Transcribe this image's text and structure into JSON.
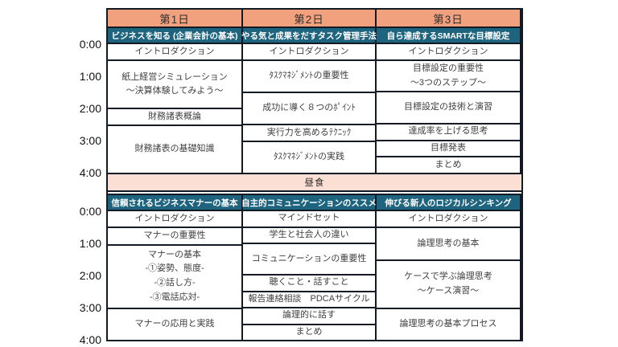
{
  "colors": {
    "day_header_bg": "#F1A17D",
    "course_title_bg": "#1E647E",
    "course_title_text": "#FFFFFF",
    "lunch_bg": "#FBDFD4",
    "border": "#131A23",
    "cell_text": "#3F3F3F",
    "header_text": "#2E2E2E"
  },
  "time_axis": {
    "morning": [
      "0:00",
      "1:00",
      "2:00",
      "3:00",
      "4:00"
    ],
    "afternoon": [
      "0:00",
      "1:00",
      "2:00",
      "3:00",
      "4:00"
    ]
  },
  "lunch_label": "昼食",
  "days": [
    {
      "header": "第1日",
      "morning": {
        "title": "ビジネスを知る (企業会計の基本)",
        "sessions": [
          {
            "lines": [
              "イントロダクション"
            ],
            "hours": 0.5
          },
          {
            "lines": [
              "紙上経営シミュレーション",
              "～決算体験してみよう～"
            ],
            "hours": 1.5
          },
          {
            "lines": [
              "財務諸表概論"
            ],
            "hours": 0.5
          },
          {
            "lines": [
              "財務諸表の基礎知識"
            ],
            "hours": 1.5
          }
        ]
      },
      "afternoon": {
        "title": "信頼されるビジネスマナーの基本",
        "sessions": [
          {
            "lines": [
              "イントロダクション"
            ],
            "hours": 0.5
          },
          {
            "lines": [
              "マナーの重要性"
            ],
            "hours": 0.5
          },
          {
            "lines": [
              "マナーの基本",
              "-①姿勢、態度-",
              "-②話し方-",
              "-③電話応対-"
            ],
            "hours": 2
          },
          {
            "lines": [
              "マナーの応用と実践"
            ],
            "hours": 1
          }
        ]
      }
    },
    {
      "header": "第2日",
      "morning": {
        "title": "やる気と成果をだすタスク管理手法",
        "sessions": [
          {
            "lines": [
              "イントロダクション"
            ],
            "hours": 0.5
          },
          {
            "lines": [
              "ﾀｽｸﾏﾈｼﾞﾒﾝﾄの重要性"
            ],
            "hours": 1
          },
          {
            "lines": [
              "成功に導く８つのﾎﾟｲﾝﾄ"
            ],
            "hours": 1
          },
          {
            "lines": [
              "実行力を高めるﾃｸﾆｯｸ"
            ],
            "hours": 0.5
          },
          {
            "lines": [
              "ﾀｽｸﾏﾈｼﾞﾒﾝﾄの実践"
            ],
            "hours": 1
          }
        ]
      },
      "afternoon": {
        "title": "自主的コミュニケーションのススメ",
        "sessions": [
          {
            "lines": [
              "マインドセット"
            ],
            "hours": 0.5
          },
          {
            "lines": [
              "学生と社会人の違い"
            ],
            "hours": 0.5
          },
          {
            "lines": [
              "コミュニケーションの重要性"
            ],
            "hours": 1
          },
          {
            "lines": [
              "聴くこと・話すこと"
            ],
            "hours": 0.5
          },
          {
            "lines": [
              "報告連絡相談　PDCAサイクル"
            ],
            "hours": 0.5
          },
          {
            "lines": [
              "論理的に話す"
            ],
            "hours": 0.5
          },
          {
            "lines": [
              "まとめ"
            ],
            "hours": 0.5
          }
        ]
      }
    },
    {
      "header": "第3日",
      "morning": {
        "title": "自ら達成するSMARTな目標設定",
        "sessions": [
          {
            "lines": [
              "イントロダクション"
            ],
            "hours": 0.5
          },
          {
            "lines": [
              "目標設定の重要性",
              "～3つのステップ～"
            ],
            "hours": 1
          },
          {
            "lines": [
              "目標設定の技術と演習"
            ],
            "hours": 1
          },
          {
            "lines": [
              "達成率を上げる思考"
            ],
            "hours": 0.5
          },
          {
            "lines": [
              "目標発表"
            ],
            "hours": 0.5
          },
          {
            "lines": [
              "まとめ"
            ],
            "hours": 0.5
          }
        ]
      },
      "afternoon": {
        "title": "伸びる新人のロジカルシンキング",
        "sessions": [
          {
            "lines": [
              "イントロダクション"
            ],
            "hours": 0.5
          },
          {
            "lines": [
              "論理思考の基本"
            ],
            "hours": 1
          },
          {
            "lines": [
              "ケースで学ぶ論理思考",
              "～ケース演習～"
            ],
            "hours": 1.5
          },
          {
            "lines": [
              "論理思考の基本プロセス"
            ],
            "hours": 1
          }
        ]
      }
    }
  ]
}
